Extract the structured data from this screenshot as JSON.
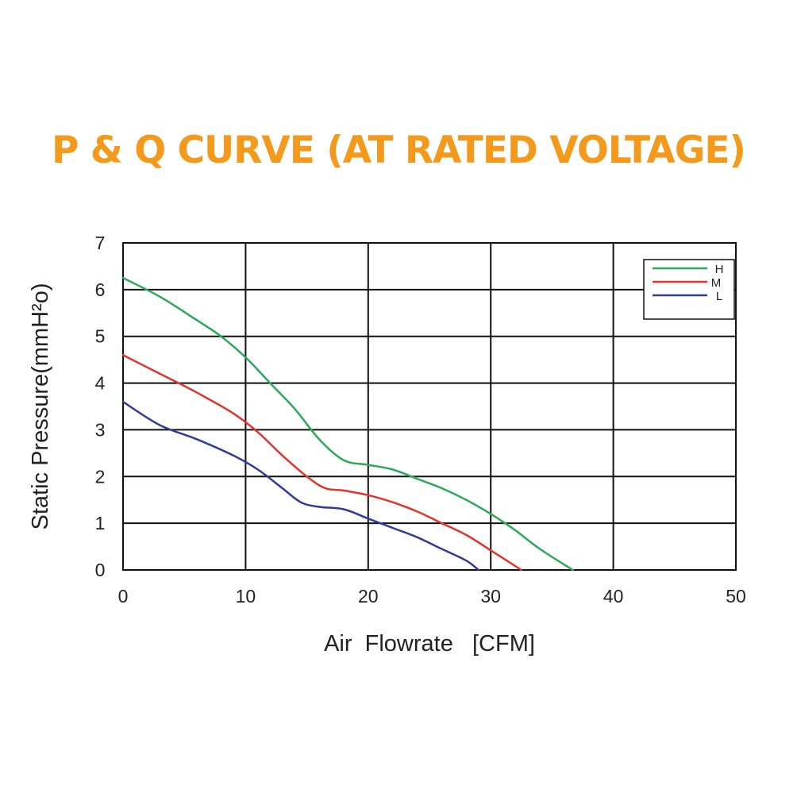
{
  "chart_data": {
    "type": "line",
    "title": "P & Q CURVE (AT RATED VOLTAGE)",
    "xlabel": "Air  Flowrate   [CFM]",
    "ylabel": "Static Pressure(mmH²o)",
    "xlim": [
      0,
      50
    ],
    "ylim": [
      0,
      7
    ],
    "xticks": [
      0,
      10,
      20,
      30,
      40,
      50
    ],
    "yticks": [
      0,
      1,
      2,
      3,
      4,
      5,
      6,
      7
    ],
    "grid": true,
    "legend_position": "top-right",
    "series": [
      {
        "name": "H",
        "color": "#2ca85a",
        "points": [
          [
            0,
            6.25
          ],
          [
            3,
            5.85
          ],
          [
            6,
            5.35
          ],
          [
            8,
            5.0
          ],
          [
            10,
            4.55
          ],
          [
            12,
            4.0
          ],
          [
            14,
            3.45
          ],
          [
            16,
            2.8
          ],
          [
            18,
            2.35
          ],
          [
            20,
            2.25
          ],
          [
            22,
            2.15
          ],
          [
            24,
            1.95
          ],
          [
            26,
            1.75
          ],
          [
            28,
            1.5
          ],
          [
            30,
            1.2
          ],
          [
            32,
            0.85
          ],
          [
            34,
            0.45
          ],
          [
            36.7,
            0.0
          ]
        ]
      },
      {
        "name": "M",
        "color": "#e3342a",
        "points": [
          [
            0,
            4.6
          ],
          [
            3,
            4.2
          ],
          [
            6,
            3.8
          ],
          [
            9,
            3.35
          ],
          [
            11,
            2.95
          ],
          [
            13,
            2.45
          ],
          [
            15,
            2.0
          ],
          [
            16.5,
            1.75
          ],
          [
            18,
            1.7
          ],
          [
            20,
            1.6
          ],
          [
            22,
            1.45
          ],
          [
            24,
            1.25
          ],
          [
            26,
            1.0
          ],
          [
            28,
            0.75
          ],
          [
            30,
            0.42
          ],
          [
            32.5,
            0.0
          ]
        ]
      },
      {
        "name": "L",
        "color": "#2f3b9a",
        "points": [
          [
            0,
            3.6
          ],
          [
            3,
            3.1
          ],
          [
            6,
            2.8
          ],
          [
            9,
            2.45
          ],
          [
            11,
            2.15
          ],
          [
            13,
            1.75
          ],
          [
            14.5,
            1.45
          ],
          [
            16,
            1.35
          ],
          [
            18,
            1.3
          ],
          [
            20,
            1.1
          ],
          [
            22,
            0.9
          ],
          [
            24,
            0.7
          ],
          [
            26,
            0.45
          ],
          [
            28,
            0.2
          ],
          [
            29,
            0.0
          ]
        ]
      }
    ]
  }
}
